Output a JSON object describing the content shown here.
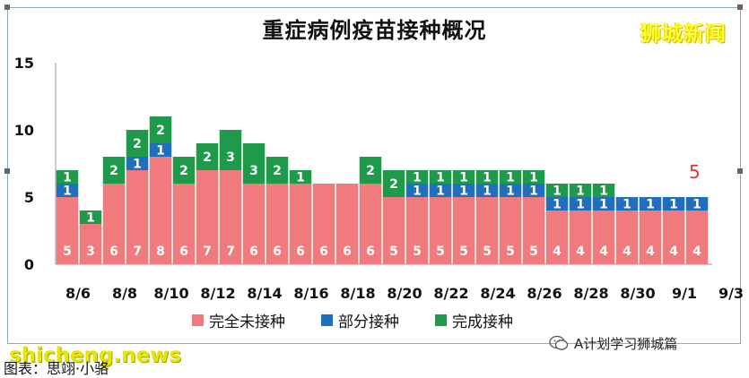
{
  "title": "重症病例疫苗接种概况",
  "brand": "狮城新闻",
  "watermark_left": "shicheng.news",
  "watermark_right": "A计划学习狮城篇",
  "source_text": "图表：思翊·小骆",
  "annotation": "5",
  "colors": {
    "unvaccinated": "#f07a7e",
    "partial": "#1f6fbf",
    "full": "#1e9a4b",
    "annotation": "#d93a3a",
    "brand": "#ffff33"
  },
  "chart_data": {
    "type": "bar",
    "stacked": true,
    "title": "重症病例疫苗接种概况",
    "xlabel": "",
    "ylabel": "",
    "ylim": [
      0,
      15
    ],
    "yticks": [
      0,
      5,
      10,
      15
    ],
    "categories": [
      "8/6",
      "8/7",
      "8/8",
      "8/9",
      "8/10",
      "8/11",
      "8/12",
      "8/13",
      "8/14",
      "8/15",
      "8/16",
      "8/17",
      "8/18",
      "8/19",
      "8/20",
      "8/21",
      "8/22",
      "8/23",
      "8/24",
      "8/25",
      "8/26",
      "8/27",
      "8/28",
      "8/29",
      "8/30",
      "8/31",
      "9/1",
      "9/2"
    ],
    "xtick_labels": [
      "8/6",
      "8/8",
      "8/10",
      "8/12",
      "8/14",
      "8/16",
      "8/18",
      "8/20",
      "8/22",
      "8/24",
      "8/26",
      "8/28",
      "8/30",
      "9/1",
      "9/3"
    ],
    "series": [
      {
        "name": "完全未接种",
        "values": [
          5,
          3,
          6,
          7,
          8,
          6,
          7,
          7,
          6,
          6,
          6,
          6,
          6,
          6,
          5,
          5,
          5,
          5,
          5,
          5,
          5,
          4,
          4,
          4,
          4,
          4,
          4,
          4
        ]
      },
      {
        "name": "部分接种",
        "values": [
          1,
          0,
          0,
          1,
          1,
          0,
          0,
          0,
          0,
          0,
          0,
          0,
          0,
          0,
          0,
          1,
          1,
          1,
          1,
          1,
          1,
          1,
          1,
          1,
          1,
          1,
          1,
          1
        ]
      },
      {
        "name": "完成接种",
        "values": [
          1,
          1,
          2,
          2,
          2,
          2,
          2,
          3,
          3,
          2,
          1,
          0,
          0,
          2,
          2,
          1,
          1,
          1,
          1,
          1,
          1,
          1,
          1,
          1,
          0,
          0,
          0,
          0
        ]
      }
    ],
    "legend_position": "bottom",
    "grid": false
  }
}
